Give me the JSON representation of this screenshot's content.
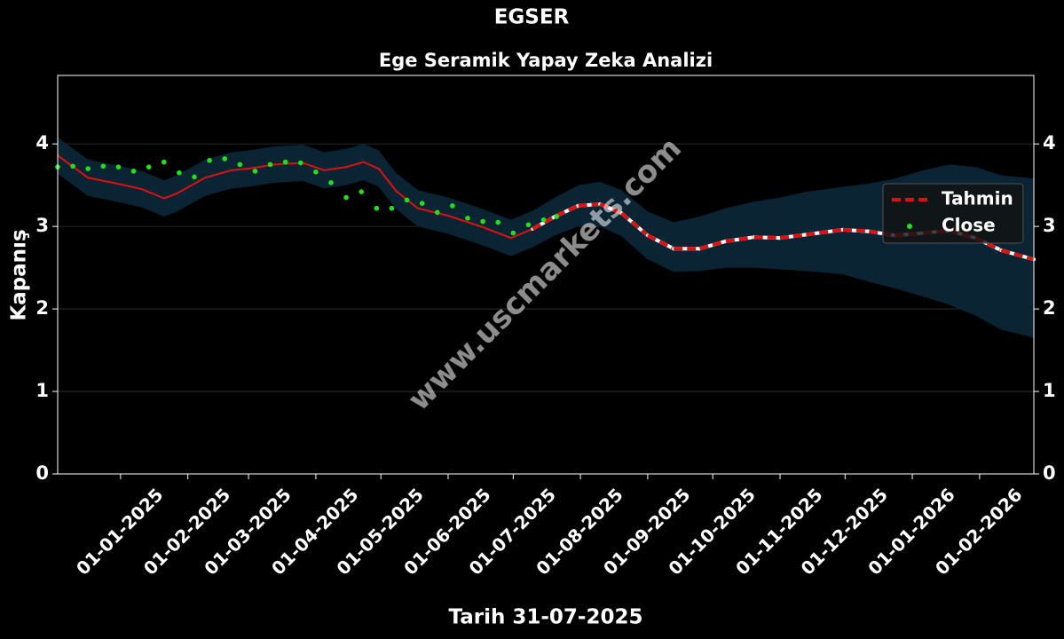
{
  "chart_data": {
    "type": "line",
    "title": "EGSER",
    "subtitle": "Ege Seramik Yapay Zeka Analizi",
    "x_label": "Tarih 31-07-2025",
    "y_label": "Kapanış",
    "watermark": "www.uscmarkets.com",
    "xlim": [
      "2024-12-03",
      "2026-02-26"
    ],
    "xticks": [
      {
        "value": "2025-01-01",
        "label": "01-01-2025"
      },
      {
        "value": "2025-02-01",
        "label": "01-02-2025"
      },
      {
        "value": "2025-03-01",
        "label": "01-03-2025"
      },
      {
        "value": "2025-04-01",
        "label": "01-04-2025"
      },
      {
        "value": "2025-05-01",
        "label": "01-05-2025"
      },
      {
        "value": "2025-06-01",
        "label": "01-06-2025"
      },
      {
        "value": "2025-07-01",
        "label": "01-07-2025"
      },
      {
        "value": "2025-08-01",
        "label": "01-08-2025"
      },
      {
        "value": "2025-09-01",
        "label": "01-09-2025"
      },
      {
        "value": "2025-10-01",
        "label": "01-10-2025"
      },
      {
        "value": "2025-11-01",
        "label": "01-11-2025"
      },
      {
        "value": "2025-12-01",
        "label": "01-12-2025"
      },
      {
        "value": "2026-01-01",
        "label": "01-01-2026"
      },
      {
        "value": "2026-02-01",
        "label": "01-02-2026"
      }
    ],
    "ylim": [
      0,
      4.83
    ],
    "yticks": [
      0,
      1,
      2,
      3,
      4
    ],
    "grid": true,
    "legend": "upper right",
    "band_color": "#0a2434",
    "series": [
      {
        "name": "Tahmin",
        "type": "line",
        "color": "#e01010",
        "dashed_from": "2025-07-10",
        "x": [
          "2024-12-03",
          "2024-12-17",
          "2025-01-01",
          "2025-01-11",
          "2025-01-21",
          "2025-01-27",
          "2025-02-09",
          "2025-02-21",
          "2025-03-01",
          "2025-03-13",
          "2025-03-26",
          "2025-04-05",
          "2025-04-15",
          "2025-04-23",
          "2025-04-30",
          "2025-05-08",
          "2025-05-18",
          "2025-06-01",
          "2025-06-16",
          "2025-06-30",
          "2025-07-10",
          "2025-07-21",
          "2025-07-31",
          "2025-08-10",
          "2025-08-20",
          "2025-09-01",
          "2025-09-13",
          "2025-09-25",
          "2025-10-07",
          "2025-10-20",
          "2025-11-01",
          "2025-11-13",
          "2025-11-30",
          "2025-12-12",
          "2025-12-24",
          "2026-01-06",
          "2026-01-18",
          "2026-01-30",
          "2026-02-11",
          "2026-02-26"
        ],
        "values": [
          3.86,
          3.59,
          3.51,
          3.45,
          3.34,
          3.4,
          3.59,
          3.68,
          3.7,
          3.75,
          3.77,
          3.68,
          3.72,
          3.78,
          3.7,
          3.43,
          3.22,
          3.13,
          3.0,
          2.86,
          2.97,
          3.13,
          3.25,
          3.27,
          3.16,
          2.89,
          2.73,
          2.73,
          2.82,
          2.87,
          2.86,
          2.9,
          2.96,
          2.94,
          2.89,
          2.92,
          2.95,
          2.86,
          2.71,
          2.6
        ],
        "lower": [
          3.64,
          3.37,
          3.29,
          3.23,
          3.12,
          3.18,
          3.37,
          3.46,
          3.48,
          3.53,
          3.55,
          3.46,
          3.5,
          3.56,
          3.48,
          3.21,
          3.0,
          2.91,
          2.78,
          2.64,
          2.75,
          2.9,
          3.0,
          3.0,
          2.88,
          2.6,
          2.45,
          2.46,
          2.5,
          2.5,
          2.48,
          2.46,
          2.42,
          2.33,
          2.25,
          2.15,
          2.05,
          1.92,
          1.75,
          1.65
        ],
        "upper": [
          4.08,
          3.81,
          3.73,
          3.67,
          3.56,
          3.62,
          3.81,
          3.9,
          3.92,
          3.97,
          3.99,
          3.9,
          3.94,
          4.0,
          3.92,
          3.65,
          3.44,
          3.35,
          3.22,
          3.08,
          3.19,
          3.36,
          3.5,
          3.54,
          3.44,
          3.18,
          3.05,
          3.12,
          3.22,
          3.3,
          3.35,
          3.42,
          3.48,
          3.52,
          3.58,
          3.68,
          3.75,
          3.72,
          3.62,
          3.58
        ]
      },
      {
        "name": "Close",
        "type": "scatter",
        "color": "#22e01a",
        "x": [
          "2024-12-03",
          "2024-12-10",
          "2024-12-17",
          "2024-12-24",
          "2024-12-31",
          "2025-01-07",
          "2025-01-14",
          "2025-01-21",
          "2025-01-28",
          "2025-02-04",
          "2025-02-11",
          "2025-02-18",
          "2025-02-25",
          "2025-03-04",
          "2025-03-11",
          "2025-03-18",
          "2025-03-25",
          "2025-04-01",
          "2025-04-08",
          "2025-04-15",
          "2025-04-22",
          "2025-04-29",
          "2025-05-06",
          "2025-05-13",
          "2025-05-20",
          "2025-05-27",
          "2025-06-03",
          "2025-06-10",
          "2025-06-17",
          "2025-06-24",
          "2025-07-01",
          "2025-07-08",
          "2025-07-15",
          "2025-07-21"
        ],
        "values": [
          3.72,
          3.73,
          3.7,
          3.73,
          3.72,
          3.67,
          3.72,
          3.78,
          3.65,
          3.6,
          3.8,
          3.82,
          3.75,
          3.67,
          3.75,
          3.78,
          3.77,
          3.66,
          3.53,
          3.35,
          3.42,
          3.22,
          3.22,
          3.32,
          3.28,
          3.17,
          3.25,
          3.1,
          3.06,
          3.05,
          2.92,
          3.02,
          3.08,
          3.12
        ]
      }
    ]
  }
}
